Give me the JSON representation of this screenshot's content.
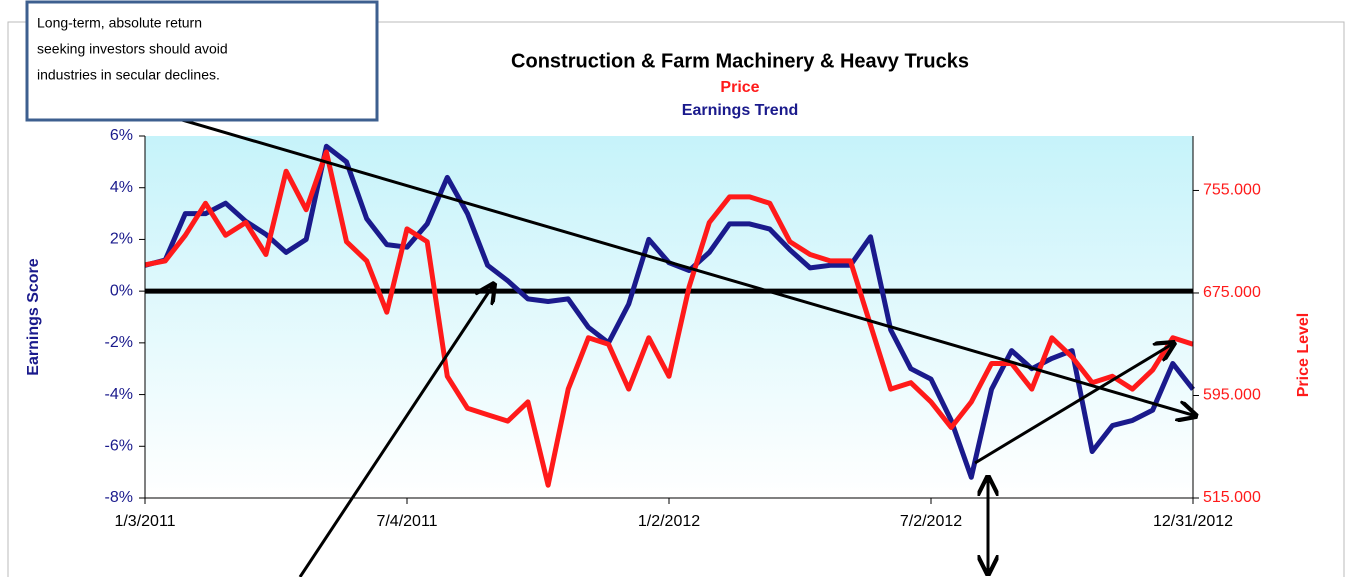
{
  "chart_data": {
    "type": "line",
    "title": "Construction & Farm Machinery & Heavy Trucks",
    "subtitles": [
      "Price",
      "Earnings Trend"
    ],
    "y_label": "Earnings Score",
    "y2_label": "Price Level",
    "annotation": [
      "Long-term, absolute return",
      "seeking investors should avoid",
      "industries in secular declines."
    ],
    "x": [
      "1/3/2011",
      "1/17/2011",
      "1/31/2011",
      "2/14/2011",
      "2/28/2011",
      "3/14/2011",
      "3/28/2011",
      "4/11/2011",
      "4/25/2011",
      "5/9/2011",
      "5/23/2011",
      "6/6/2011",
      "6/20/2011",
      "7/4/2011",
      "7/18/2011",
      "8/1/2011",
      "8/15/2011",
      "8/29/2011",
      "9/12/2011",
      "9/26/2011",
      "10/10/2011",
      "10/24/2011",
      "11/7/2011",
      "11/21/2011",
      "12/5/2011",
      "12/19/2011",
      "1/2/2012",
      "1/16/2012",
      "1/30/2012",
      "2/13/2012",
      "2/27/2012",
      "3/12/2012",
      "3/26/2012",
      "4/9/2012",
      "4/23/2012",
      "5/7/2012",
      "5/21/2012",
      "6/4/2012",
      "6/18/2012",
      "7/2/2012",
      "7/16/2012",
      "7/30/2012",
      "8/13/2012",
      "8/27/2012",
      "9/10/2012",
      "9/24/2012",
      "10/8/2012",
      "10/22/2012",
      "11/5/2012",
      "11/19/2012",
      "12/3/2012",
      "12/17/2012",
      "12/31/2012"
    ],
    "xlim": [
      "1/3/2011",
      "12/31/2012"
    ],
    "xticks": [
      "1/3/2011",
      "7/4/2011",
      "1/2/2012",
      "7/2/2012",
      "12/31/2012"
    ],
    "ylim": [
      -8,
      6
    ],
    "yticks": [
      {
        "value": -8,
        "label": "-8%"
      },
      {
        "value": -6,
        "label": "-6%"
      },
      {
        "value": -4,
        "label": "-4%"
      },
      {
        "value": -2,
        "label": "-2%"
      },
      {
        "value": 0,
        "label": "0%"
      },
      {
        "value": 2,
        "label": "2%"
      },
      {
        "value": 4,
        "label": "4%"
      },
      {
        "value": 6,
        "label": "6%"
      }
    ],
    "y2lim": [
      515,
      797.5
    ],
    "y2ticks": [
      {
        "value": 515,
        "label": "515.000"
      },
      {
        "value": 595,
        "label": "595.000"
      },
      {
        "value": 675,
        "label": "675.000"
      },
      {
        "value": 755,
        "label": "755.000"
      }
    ],
    "series": [
      {
        "name": "Earnings Trend",
        "color": "#1a1a8c",
        "axis": "y",
        "values": [
          1.0,
          1.2,
          3.0,
          3.0,
          3.4,
          2.7,
          2.2,
          1.5,
          2.0,
          5.6,
          5.0,
          2.8,
          1.8,
          1.7,
          2.6,
          4.4,
          3.0,
          1.0,
          0.4,
          -0.3,
          -0.4,
          -0.3,
          -1.4,
          -2.0,
          -0.5,
          2.0,
          1.1,
          0.8,
          1.5,
          2.6,
          2.6,
          2.4,
          1.6,
          0.9,
          1.0,
          1.0,
          2.1,
          -1.5,
          -3.0,
          -3.4,
          -5.0,
          -7.2,
          -3.8,
          -2.3,
          -3.0,
          -2.6,
          -2.3,
          -6.2,
          -5.2,
          -5.0,
          -4.6,
          -2.8,
          -3.8
        ]
      },
      {
        "name": "Price",
        "color": "#ff1a1a",
        "axis": "y2",
        "values": [
          697,
          700,
          720,
          745,
          720,
          730,
          705,
          770,
          740,
          785,
          715,
          700,
          660,
          725,
          715,
          610,
          585,
          580,
          575,
          590,
          525,
          600,
          640,
          635,
          600,
          640,
          610,
          680,
          730,
          750,
          750,
          745,
          715,
          705,
          700,
          700,
          650,
          600,
          605,
          590,
          570,
          590,
          620,
          620,
          600,
          640,
          625,
          605,
          610,
          600,
          615,
          640,
          635
        ]
      }
    ],
    "zero_line": true
  }
}
